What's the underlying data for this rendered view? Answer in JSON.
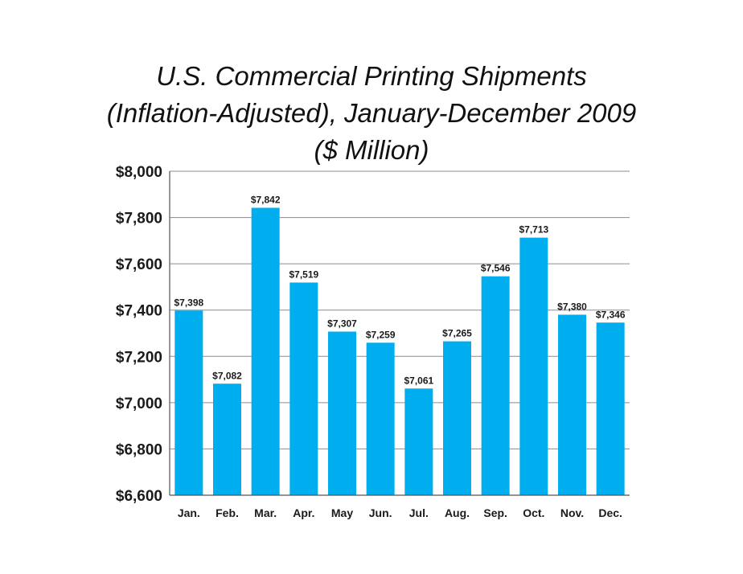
{
  "chart_data": {
    "type": "bar",
    "title_lines": [
      "U.S. Commercial Printing Shipments",
      "(Inflation-Adjusted), January-December 2009",
      "($ Million)"
    ],
    "categories": [
      "Jan.",
      "Feb.",
      "Mar.",
      "Apr.",
      "May",
      "Jun.",
      "Jul.",
      "Aug.",
      "Sep.",
      "Oct.",
      "Nov.",
      "Dec."
    ],
    "values": [
      7398,
      7082,
      7842,
      7519,
      7307,
      7259,
      7061,
      7265,
      7546,
      7713,
      7380,
      7346
    ],
    "data_labels": [
      "$7,398",
      "$7,082",
      "$7,842",
      "$7,519",
      "$7,307",
      "$7,259",
      "$7,061",
      "$7,265",
      "$7,546",
      "$7,713",
      "$7,380",
      "$7,346"
    ],
    "yticks": [
      6600,
      6800,
      7000,
      7200,
      7400,
      7600,
      7800,
      8000
    ],
    "ytick_labels": [
      "$6,600",
      "$6,800",
      "$7,000",
      "$7,200",
      "$7,400",
      "$7,600",
      "$7,800",
      "$8,000"
    ],
    "ylim": [
      6600,
      8000
    ],
    "xlabel": "",
    "ylabel": "",
    "grid": true,
    "bar_color": "#00aeef"
  }
}
